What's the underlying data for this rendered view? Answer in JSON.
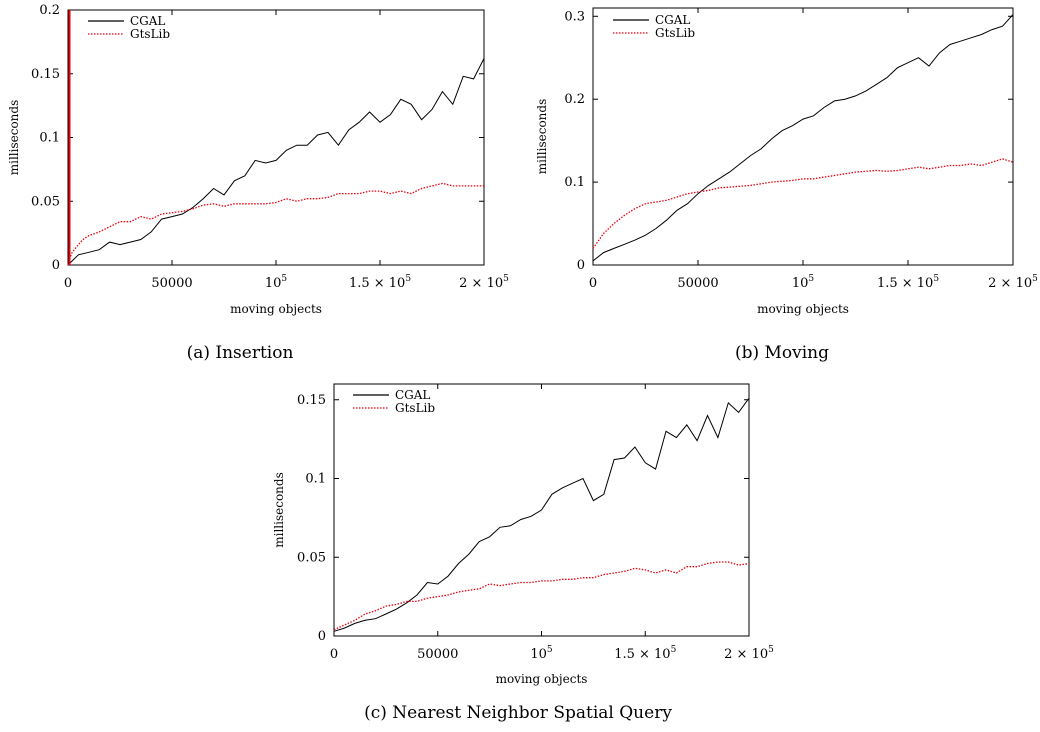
{
  "figure": {
    "width": 1040,
    "height": 732
  },
  "chart_data": [
    {
      "type": "line",
      "caption": "(a) Insertion",
      "xlabel": "moving objects",
      "ylabel": "milliseconds",
      "xlim": [
        0,
        200000
      ],
      "ylim": [
        0,
        0.2
      ],
      "xticks": [
        0,
        50000,
        100000,
        150000,
        200000
      ],
      "xtick_labels": [
        "0",
        "50000",
        "10^5",
        "1.5 × 10^5",
        "2 × 10^5"
      ],
      "yticks": [
        0,
        0.05,
        0.1,
        0.15,
        0.2
      ],
      "ytick_labels": [
        "0",
        "0.05",
        "0.1",
        "0.15",
        "0.2"
      ],
      "legend_position": "top-left",
      "series": [
        {
          "name": "CGAL",
          "color": "#000000",
          "dash": "solid",
          "x": [
            0,
            5000,
            10000,
            15000,
            20000,
            25000,
            30000,
            35000,
            40000,
            45000,
            50000,
            55000,
            60000,
            65000,
            70000,
            75000,
            80000,
            85000,
            90000,
            95000,
            100000,
            105000,
            110000,
            115000,
            120000,
            125000,
            130000,
            135000,
            140000,
            145000,
            150000,
            155000,
            160000,
            165000,
            170000,
            175000,
            180000,
            185000,
            190000,
            195000,
            200000
          ],
          "y": [
            0,
            0.008,
            0.01,
            0.012,
            0.018,
            0.016,
            0.018,
            0.02,
            0.026,
            0.036,
            0.038,
            0.04,
            0.045,
            0.052,
            0.06,
            0.055,
            0.066,
            0.07,
            0.082,
            0.08,
            0.082,
            0.09,
            0.094,
            0.094,
            0.102,
            0.104,
            0.094,
            0.106,
            0.112,
            0.12,
            0.112,
            0.118,
            0.13,
            0.126,
            0.114,
            0.122,
            0.136,
            0.126,
            0.148,
            0.146,
            0.162
          ]
        },
        {
          "name": "GtsLib",
          "color": "#e8000b",
          "dash": "dotted",
          "x": [
            0,
            1000,
            2000,
            3000,
            4000,
            6000,
            8000,
            10000,
            15000,
            20000,
            25000,
            30000,
            35000,
            40000,
            45000,
            50000,
            55000,
            60000,
            65000,
            70000,
            75000,
            80000,
            85000,
            90000,
            95000,
            100000,
            105000,
            110000,
            115000,
            120000,
            125000,
            130000,
            135000,
            140000,
            145000,
            150000,
            155000,
            160000,
            165000,
            170000,
            175000,
            180000,
            185000,
            190000,
            195000,
            200000
          ],
          "y": [
            0,
            0.006,
            0.01,
            0.012,
            0.014,
            0.018,
            0.021,
            0.023,
            0.026,
            0.03,
            0.034,
            0.034,
            0.038,
            0.036,
            0.04,
            0.041,
            0.042,
            0.044,
            0.047,
            0.048,
            0.046,
            0.048,
            0.048,
            0.048,
            0.048,
            0.049,
            0.052,
            0.05,
            0.052,
            0.052,
            0.053,
            0.056,
            0.056,
            0.056,
            0.058,
            0.058,
            0.056,
            0.058,
            0.056,
            0.06,
            0.062,
            0.064,
            0.062,
            0.062,
            0.062,
            0.062
          ]
        }
      ]
    },
    {
      "type": "line",
      "caption": "(b) Moving",
      "xlabel": "moving objects",
      "ylabel": "milliseconds",
      "xlim": [
        0,
        200000
      ],
      "ylim": [
        0,
        0.31
      ],
      "xticks": [
        0,
        50000,
        100000,
        150000,
        200000
      ],
      "xtick_labels": [
        "0",
        "50000",
        "10^5",
        "1.5 × 10^5",
        "2 × 10^5"
      ],
      "yticks": [
        0,
        0.1,
        0.2,
        0.3
      ],
      "ytick_labels": [
        "0",
        "0.1",
        "0.2",
        "0.3"
      ],
      "legend_position": "top-left",
      "series": [
        {
          "name": "CGAL",
          "color": "#000000",
          "dash": "solid",
          "x": [
            0,
            5000,
            10000,
            15000,
            20000,
            25000,
            30000,
            35000,
            40000,
            45000,
            50000,
            55000,
            60000,
            65000,
            70000,
            75000,
            80000,
            85000,
            90000,
            95000,
            100000,
            105000,
            110000,
            115000,
            120000,
            125000,
            130000,
            135000,
            140000,
            145000,
            150000,
            155000,
            160000,
            165000,
            170000,
            175000,
            180000,
            185000,
            190000,
            195000,
            200000
          ],
          "y": [
            0.005,
            0.015,
            0.02,
            0.025,
            0.03,
            0.036,
            0.044,
            0.054,
            0.066,
            0.074,
            0.086,
            0.096,
            0.104,
            0.112,
            0.122,
            0.132,
            0.14,
            0.152,
            0.162,
            0.168,
            0.176,
            0.18,
            0.19,
            0.198,
            0.2,
            0.204,
            0.21,
            0.218,
            0.226,
            0.238,
            0.244,
            0.25,
            0.24,
            0.256,
            0.266,
            0.27,
            0.274,
            0.278,
            0.284,
            0.288,
            0.302
          ]
        },
        {
          "name": "GtsLib",
          "color": "#e8000b",
          "dash": "dotted",
          "x": [
            0,
            5000,
            10000,
            15000,
            20000,
            25000,
            30000,
            35000,
            40000,
            45000,
            50000,
            55000,
            60000,
            65000,
            70000,
            75000,
            80000,
            85000,
            90000,
            95000,
            100000,
            105000,
            110000,
            115000,
            120000,
            125000,
            130000,
            135000,
            140000,
            145000,
            150000,
            155000,
            160000,
            165000,
            170000,
            175000,
            180000,
            185000,
            190000,
            195000,
            200000
          ],
          "y": [
            0.02,
            0.038,
            0.05,
            0.06,
            0.068,
            0.074,
            0.076,
            0.078,
            0.082,
            0.086,
            0.088,
            0.09,
            0.093,
            0.094,
            0.095,
            0.096,
            0.098,
            0.1,
            0.101,
            0.102,
            0.104,
            0.104,
            0.106,
            0.108,
            0.11,
            0.112,
            0.113,
            0.114,
            0.113,
            0.114,
            0.116,
            0.118,
            0.116,
            0.118,
            0.12,
            0.12,
            0.122,
            0.12,
            0.124,
            0.128,
            0.124
          ]
        }
      ]
    },
    {
      "type": "line",
      "caption": "(c) Nearest Neighbor Spatial Query",
      "xlabel": "moving objects",
      "ylabel": "milliseconds",
      "xlim": [
        0,
        200000
      ],
      "ylim": [
        0,
        0.16
      ],
      "xticks": [
        0,
        50000,
        100000,
        150000,
        200000
      ],
      "xtick_labels": [
        "0",
        "50000",
        "10^5",
        "1.5 × 10^5",
        "2 × 10^5"
      ],
      "yticks": [
        0,
        0.05,
        0.1,
        0.15
      ],
      "ytick_labels": [
        "0",
        "0.05",
        "0.1",
        "0.15"
      ],
      "legend_position": "top-left",
      "series": [
        {
          "name": "CGAL",
          "color": "#000000",
          "dash": "solid",
          "x": [
            0,
            5000,
            10000,
            15000,
            20000,
            25000,
            30000,
            35000,
            40000,
            45000,
            50000,
            55000,
            60000,
            65000,
            70000,
            75000,
            80000,
            85000,
            90000,
            95000,
            100000,
            105000,
            110000,
            115000,
            120000,
            125000,
            130000,
            135000,
            140000,
            145000,
            150000,
            155000,
            160000,
            165000,
            170000,
            175000,
            180000,
            185000,
            190000,
            195000,
            200000
          ],
          "y": [
            0.003,
            0.005,
            0.008,
            0.01,
            0.011,
            0.014,
            0.017,
            0.021,
            0.026,
            0.034,
            0.033,
            0.038,
            0.046,
            0.052,
            0.06,
            0.063,
            0.069,
            0.07,
            0.074,
            0.076,
            0.08,
            0.09,
            0.094,
            0.097,
            0.1,
            0.086,
            0.09,
            0.112,
            0.113,
            0.12,
            0.11,
            0.106,
            0.13,
            0.126,
            0.134,
            0.124,
            0.14,
            0.126,
            0.148,
            0.142,
            0.151
          ]
        },
        {
          "name": "GtsLib",
          "color": "#e8000b",
          "dash": "dotted",
          "x": [
            0,
            5000,
            10000,
            15000,
            20000,
            25000,
            30000,
            35000,
            40000,
            45000,
            50000,
            55000,
            60000,
            65000,
            70000,
            75000,
            80000,
            85000,
            90000,
            95000,
            100000,
            105000,
            110000,
            115000,
            120000,
            125000,
            130000,
            135000,
            140000,
            145000,
            150000,
            155000,
            160000,
            165000,
            170000,
            175000,
            180000,
            185000,
            190000,
            195000,
            200000
          ],
          "y": [
            0.004,
            0.007,
            0.01,
            0.014,
            0.016,
            0.019,
            0.02,
            0.022,
            0.022,
            0.024,
            0.025,
            0.026,
            0.028,
            0.029,
            0.03,
            0.033,
            0.032,
            0.033,
            0.034,
            0.034,
            0.035,
            0.035,
            0.036,
            0.036,
            0.037,
            0.037,
            0.039,
            0.04,
            0.041,
            0.043,
            0.042,
            0.04,
            0.042,
            0.04,
            0.044,
            0.044,
            0.046,
            0.047,
            0.047,
            0.045,
            0.046
          ]
        }
      ]
    }
  ]
}
